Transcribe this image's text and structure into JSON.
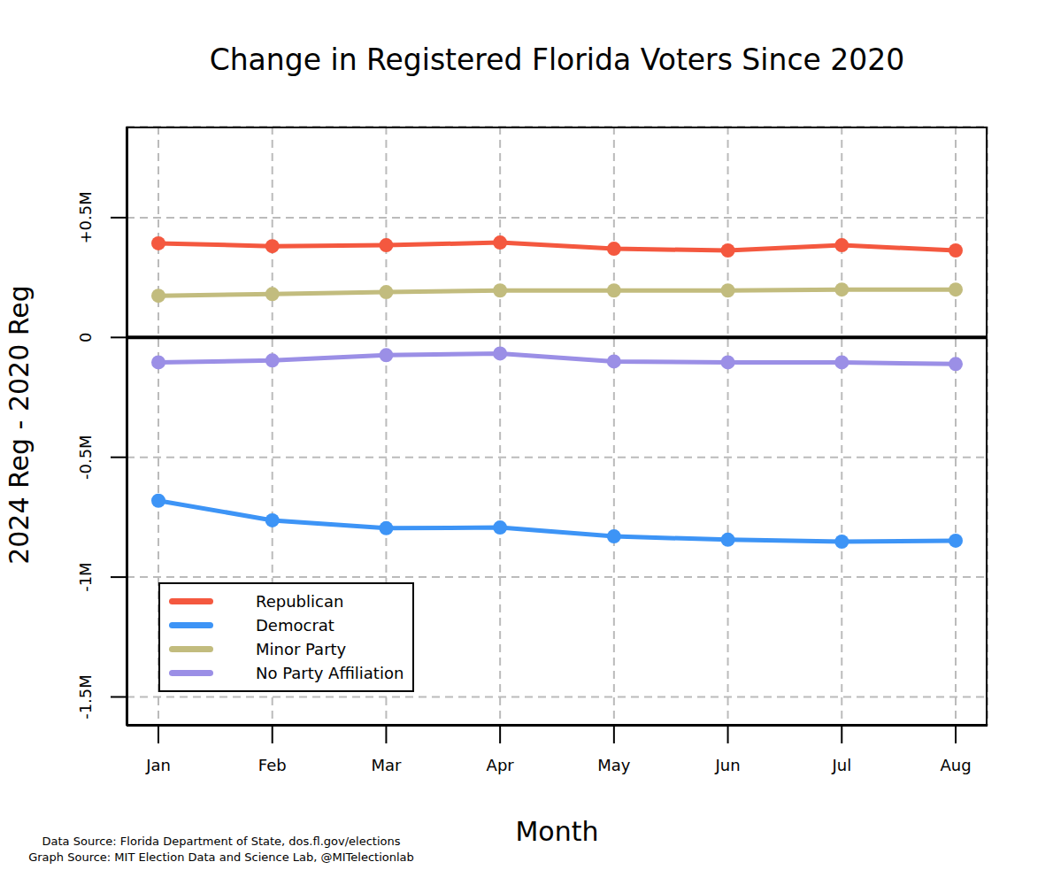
{
  "chart_data": {
    "type": "line",
    "title": "Change in Registered Florida Voters Since 2020",
    "x_label": "Month",
    "y_label": "2024 Reg - 2020 Reg",
    "notes": [
      "Data Source: Florida Department of State, dos.fl.gov/elections",
      "Graph Source: MIT Election Data and Science Lab, @MITelectionlab"
    ],
    "categories": [
      "Jan",
      "Feb",
      "Mar",
      "Apr",
      "May",
      "Jun",
      "Jul",
      "Aug"
    ],
    "series": [
      {
        "name": "Republican",
        "color": "#f4583f",
        "values": [
          393000,
          381000,
          385000,
          396000,
          370000,
          363000,
          385000,
          363000
        ]
      },
      {
        "name": "Democrat",
        "color": "#3d94f6",
        "values": [
          -681000,
          -763000,
          -796000,
          -793000,
          -830000,
          -844000,
          -852000,
          -848000
        ]
      },
      {
        "name": "Minor Party",
        "color": "#c2bc7e",
        "values": [
          174000,
          181000,
          189000,
          196000,
          196000,
          196000,
          200000,
          200000
        ]
      },
      {
        "name": "No Party Affiliation",
        "color": "#9b8fe6",
        "values": [
          -104000,
          -96000,
          -74000,
          -67000,
          -100000,
          -104000,
          -104000,
          -111000
        ]
      }
    ],
    "ylim": [
      -1620000,
      880000
    ],
    "yticks": [
      {
        "value": -1500000,
        "label": "-1.5M"
      },
      {
        "value": -1000000,
        "label": "-1M"
      },
      {
        "value": -500000,
        "label": "-0.5M"
      },
      0,
      {
        "value": 500000,
        "label": "+0.5M"
      }
    ],
    "grid": true,
    "legend": "lower left",
    "marker": "circle",
    "line_style": "solid"
  }
}
